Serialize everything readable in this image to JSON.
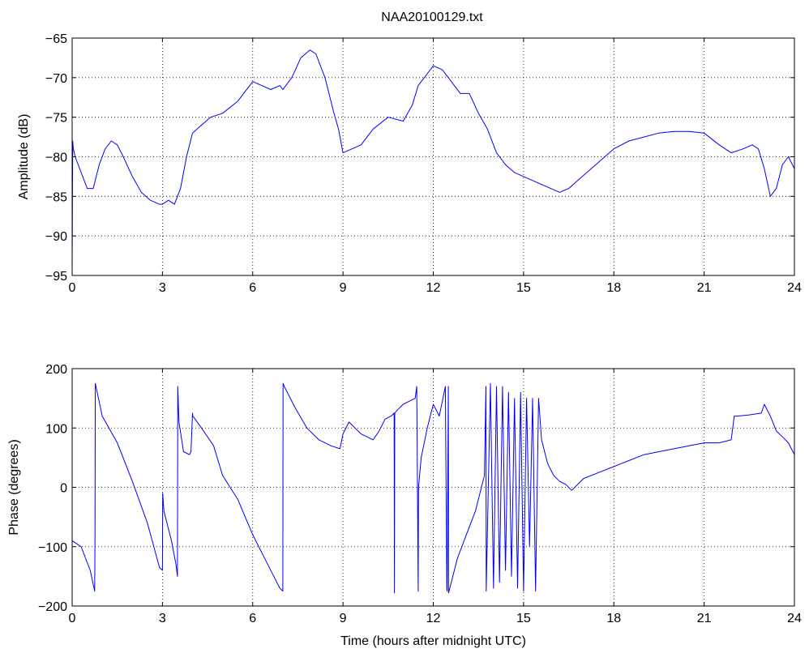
{
  "title": "NAA20100129.txt",
  "colors": {
    "line": "#0000ff",
    "axes": "#000000",
    "grid": "#000000",
    "background": "#ffffff"
  },
  "chart_data": [
    {
      "type": "line",
      "ylabel": "Amplitude (dB)",
      "xlim": [
        0,
        24
      ],
      "ylim": [
        -95,
        -65
      ],
      "xticks": [
        0,
        3,
        6,
        9,
        12,
        15,
        18,
        21,
        24
      ],
      "yticks": [
        -95,
        -90,
        -85,
        -80,
        -75,
        -70,
        -65
      ],
      "xtick_labels": [
        "0",
        "3",
        "6",
        "9",
        "12",
        "15",
        "18",
        "21",
        "24"
      ],
      "ytick_labels": [
        "−95",
        "−90",
        "−85",
        "−80",
        "−75",
        "−70",
        "−65"
      ],
      "grid": true,
      "series": [
        {
          "color": "#0000ff",
          "x": [
            0,
            0.02,
            0.04,
            0.1,
            0.3,
            0.5,
            0.7,
            0.9,
            1.1,
            1.3,
            1.5,
            1.7,
            2.0,
            2.3,
            2.6,
            2.9,
            3.0,
            3.2,
            3.4,
            3.6,
            3.8,
            4.0,
            4.3,
            4.6,
            5.0,
            5.5,
            6.0,
            6.3,
            6.6,
            6.9,
            7.0,
            7.3,
            7.6,
            7.9,
            8.1,
            8.4,
            8.7,
            8.85,
            9.0,
            9.3,
            9.6,
            10.0,
            10.5,
            11.0,
            11.3,
            11.5,
            11.8,
            12.0,
            12.3,
            12.6,
            12.9,
            13.2,
            13.5,
            13.8,
            14.1,
            14.4,
            14.7,
            15.0,
            15.3,
            15.6,
            15.9,
            16.2,
            16.5,
            16.8,
            17.1,
            17.4,
            17.7,
            18.0,
            18.5,
            19.0,
            19.5,
            20.0,
            20.5,
            21.0,
            21.5,
            21.9,
            22.3,
            22.6,
            22.8,
            23.0,
            23.2,
            23.4,
            23.6,
            23.8,
            24.0
          ],
          "y": [
            -94,
            -78,
            -79,
            -80,
            -82,
            -84,
            -84,
            -81,
            -79,
            -78,
            -78.5,
            -80,
            -82.5,
            -84.5,
            -85.5,
            -86,
            -86,
            -85.5,
            -86,
            -84,
            -80,
            -77,
            -76,
            -75,
            -74.5,
            -73,
            -70.5,
            -71,
            -71.5,
            -71,
            -71.5,
            -70,
            -67.5,
            -66.5,
            -67,
            -70,
            -74.5,
            -76.5,
            -79.5,
            -79,
            -78.5,
            -76.5,
            -75,
            -75.5,
            -73.5,
            -71,
            -69.5,
            -68.5,
            -69,
            -70.5,
            -72,
            -72,
            -74.5,
            -76.5,
            -79.5,
            -81,
            -82,
            -82.5,
            -83,
            -83.5,
            -84,
            -84.5,
            -84,
            -83,
            -82,
            -81,
            -80,
            -79,
            -78,
            -77.5,
            -77,
            -76.8,
            -76.8,
            -77,
            -78.5,
            -79.5,
            -79,
            -78.5,
            -79,
            -81.5,
            -85,
            -84,
            -81,
            -80,
            -81.5
          ]
        }
      ]
    },
    {
      "type": "line",
      "xlabel": "Time (hours after midnight UTC)",
      "ylabel": "Phase (degrees)",
      "xlim": [
        0,
        24
      ],
      "ylim": [
        -200,
        200
      ],
      "xticks": [
        0,
        3,
        6,
        9,
        12,
        15,
        18,
        21,
        24
      ],
      "yticks": [
        -200,
        -100,
        0,
        100,
        200
      ],
      "xtick_labels": [
        "0",
        "3",
        "6",
        "9",
        "12",
        "15",
        "18",
        "21",
        "24"
      ],
      "ytick_labels": [
        "−200",
        "−100",
        "0",
        "100",
        "200"
      ],
      "grid": true,
      "series": [
        {
          "color": "#0000ff",
          "x": [
            0,
            0.3,
            0.6,
            0.75,
            0.76,
            0.77,
            1.0,
            1.5,
            2.0,
            2.5,
            2.9,
            3.0,
            3.01,
            3.05,
            3.3,
            3.45,
            3.5,
            3.51,
            3.55,
            3.7,
            3.9,
            3.95,
            4.0,
            4.01,
            4.3,
            4.7,
            5.0,
            5.5,
            6.0,
            6.5,
            6.9,
            7.0,
            7.01,
            7.05,
            7.4,
            7.8,
            8.2,
            8.6,
            8.9,
            9.0,
            9.2,
            9.4,
            9.6,
            9.8,
            10.0,
            10.2,
            10.4,
            10.6,
            10.7,
            10.71,
            10.72,
            10.8,
            11.0,
            11.2,
            11.4,
            11.45,
            11.5,
            11.51,
            11.6,
            11.8,
            12.0,
            12.2,
            12.4,
            12.45,
            12.46,
            12.5,
            12.51,
            12.8,
            13.1,
            13.4,
            13.7,
            13.75,
            13.76,
            13.9,
            14.0,
            14.1,
            14.2,
            14.3,
            14.4,
            14.5,
            14.6,
            14.7,
            14.8,
            14.9,
            15.0,
            15.1,
            15.2,
            15.3,
            15.4,
            15.5,
            15.6,
            15.8,
            16.0,
            16.2,
            16.4,
            16.6,
            17.0,
            17.5,
            18.0,
            18.5,
            19.0,
            19.5,
            20.0,
            20.5,
            21.0,
            21.5,
            21.9,
            22.0,
            22.1,
            22.5,
            22.9,
            23.0,
            23.2,
            23.4,
            23.6,
            23.8,
            24.0
          ],
          "y": [
            -90,
            -100,
            -140,
            -175,
            -90,
            175,
            120,
            75,
            10,
            -60,
            -135,
            -140,
            -10,
            -40,
            -90,
            -130,
            -150,
            170,
            110,
            60,
            55,
            60,
            125,
            120,
            100,
            70,
            20,
            -20,
            -80,
            -130,
            -170,
            -175,
            175,
            170,
            135,
            100,
            80,
            70,
            65,
            90,
            110,
            100,
            90,
            85,
            80,
            95,
            115,
            120,
            125,
            -178,
            125,
            130,
            140,
            145,
            150,
            170,
            -175,
            0,
            50,
            100,
            140,
            120,
            170,
            -170,
            -175,
            170,
            -178,
            -120,
            -80,
            -40,
            20,
            170,
            -175,
            175,
            -170,
            170,
            -160,
            170,
            -140,
            160,
            -150,
            150,
            -170,
            160,
            -175,
            150,
            -100,
            150,
            -175,
            150,
            80,
            40,
            20,
            10,
            5,
            -5,
            15,
            25,
            35,
            45,
            55,
            60,
            65,
            70,
            75,
            75,
            80,
            120,
            120,
            122,
            125,
            140,
            120,
            95,
            85,
            75,
            55
          ]
        }
      ]
    }
  ]
}
